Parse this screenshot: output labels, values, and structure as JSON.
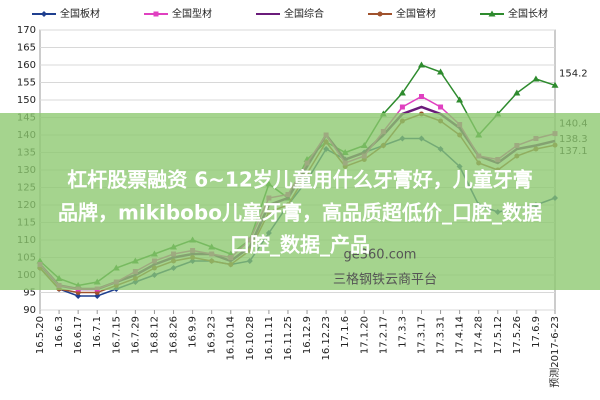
{
  "chart_data": {
    "type": "line",
    "categories": [
      "16.5.20",
      "16.6.3",
      "16.6.17",
      "16.7.1",
      "16.7.15",
      "16.7.29",
      "16.8.12",
      "16.8.26",
      "16.9.9",
      "16.9.23",
      "16.10.14",
      "16.10.28",
      "16.11.11",
      "16.11.25",
      "16.12.9",
      "16.12.23",
      "17.1.6",
      "17.1.20",
      "17.2.17",
      "17.3.3",
      "17.3.17",
      "17.3.31",
      "17.4.14",
      "17.4.28",
      "17.5.12",
      "17.5.26",
      "17.6.9",
      "预测2017-6-23"
    ],
    "series": [
      {
        "name": "全国板材",
        "color": "#1f3f8f",
        "marker": "diamond",
        "values": [
          102,
          96,
          94,
          94,
          96,
          98,
          100,
          102,
          104,
          104,
          103,
          104,
          112,
          120,
          127,
          136,
          133,
          135,
          137,
          139,
          139,
          136,
          131,
          120,
          118,
          119,
          120,
          122
        ]
      },
      {
        "name": "全国型材",
        "color": "#e040c0",
        "marker": "square",
        "values": [
          103,
          97,
          96,
          96,
          98,
          101,
          104,
          106,
          107,
          106,
          105,
          110,
          122,
          123,
          132,
          140,
          132,
          134,
          141,
          148,
          151,
          148,
          143,
          134,
          133,
          137,
          139,
          140.4
        ]
      },
      {
        "name": "全国综合",
        "color": "#6a1b7a",
        "marker": "none",
        "values": [
          103,
          97,
          96,
          96,
          98,
          100,
          103,
          105,
          106,
          106,
          104,
          108,
          120,
          122,
          131,
          140,
          133,
          135,
          140,
          146,
          148,
          146,
          142,
          134,
          132,
          136,
          137,
          138.3
        ]
      },
      {
        "name": "全国管材",
        "color": "#a0522d",
        "marker": "circle",
        "values": [
          102,
          96,
          95,
          95,
          97,
          99,
          102,
          104,
          105,
          104,
          103,
          107,
          118,
          120,
          129,
          138,
          131,
          133,
          137,
          144,
          146,
          144,
          140,
          132,
          130,
          134,
          136,
          137.1
        ]
      },
      {
        "name": "全国长材",
        "color": "#2e8b2e",
        "marker": "triangle",
        "values": [
          104,
          99,
          97,
          98,
          102,
          104,
          106,
          108,
          110,
          108,
          106,
          110,
          126,
          122,
          133,
          138,
          135,
          137,
          146,
          152,
          160,
          158,
          150,
          140,
          146,
          152,
          156,
          154.2
        ]
      }
    ],
    "ylim": [
      90,
      170
    ],
    "yticks": [
      90,
      95,
      100,
      105,
      110,
      115,
      120,
      125,
      130,
      135,
      140,
      145,
      150,
      155,
      160,
      165,
      170
    ],
    "grid": true
  },
  "banner": {
    "lines": [
      "杠杆股票融资 6~12岁儿童用什么牙膏好，儿童牙膏",
      "品牌，mikibobo儿童牙膏，高品质超低价_口腔_数据",
      "口腔_数据_产品"
    ]
  },
  "watermark": {
    "site": "ge360.com",
    "slogan": "三格钢铁云商平台"
  }
}
